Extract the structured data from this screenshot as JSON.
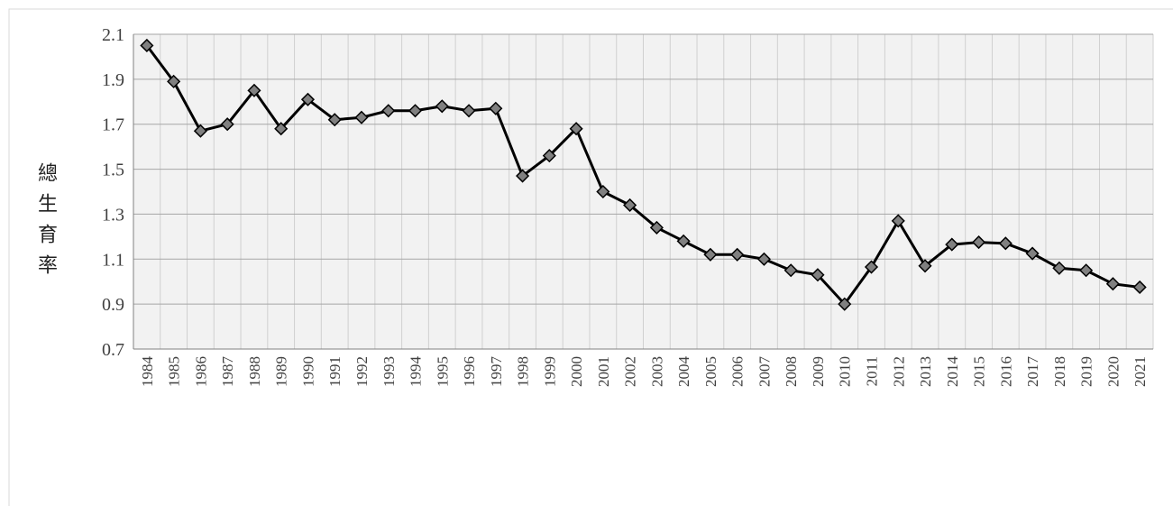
{
  "chart_data": {
    "type": "line",
    "y_label": "總生育率",
    "categories": [
      "1984",
      "1985",
      "1986",
      "1987",
      "1988",
      "1989",
      "1990",
      "1991",
      "1992",
      "1993",
      "1994",
      "1995",
      "1996",
      "1997",
      "1998",
      "1999",
      "2000",
      "2001",
      "2002",
      "2003",
      "2004",
      "2005",
      "2006",
      "2007",
      "2008",
      "2009",
      "2010",
      "2011",
      "2012",
      "2013",
      "2014",
      "2015",
      "2016",
      "2017",
      "2018",
      "2019",
      "2020",
      "2021"
    ],
    "values": [
      2.05,
      1.89,
      1.67,
      1.7,
      1.85,
      1.68,
      1.81,
      1.72,
      1.73,
      1.76,
      1.76,
      1.78,
      1.76,
      1.77,
      1.47,
      1.56,
      1.68,
      1.4,
      1.34,
      1.24,
      1.18,
      1.12,
      1.12,
      1.1,
      1.05,
      1.03,
      0.9,
      1.065,
      1.27,
      1.07,
      1.165,
      1.175,
      1.17,
      1.125,
      1.06,
      1.05,
      0.99,
      0.975
    ],
    "color": "#000000",
    "marker_color": "#808080",
    "ylim": [
      0.7,
      2.1
    ],
    "yticks": [
      0.7,
      0.9,
      1.1,
      1.3,
      1.5,
      1.7,
      1.9,
      2.1
    ],
    "grid": true
  }
}
